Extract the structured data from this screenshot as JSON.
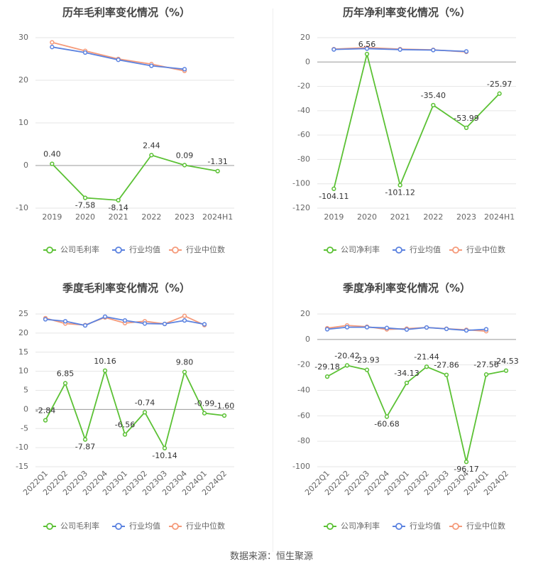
{
  "source": "数据来源：恒生聚源",
  "colors": {
    "company": "#5bc134",
    "industry_avg": "#5b82e0",
    "industry_median": "#f59a7a",
    "grid": "#e6e6e6",
    "axis": "#999999",
    "text": "#666666",
    "title": "#444444"
  },
  "chart_data": [
    {
      "id": "annual-gross",
      "type": "line",
      "title": "历年毛利率变化情况（%）",
      "categories": [
        "2019",
        "2020",
        "2021",
        "2022",
        "2023",
        "2024H1"
      ],
      "ylim": [
        -10,
        30
      ],
      "yticks": [
        -10,
        0,
        10,
        20,
        30
      ],
      "series": [
        {
          "name": "公司毛利率",
          "key": "company",
          "values": [
            0.4,
            -7.58,
            -8.14,
            2.44,
            0.09,
            -1.31
          ],
          "labels": [
            "0.40",
            "-7.58",
            "-8.14",
            "2.44",
            "0.09",
            "-1.31"
          ]
        },
        {
          "name": "行业均值",
          "key": "industry_avg",
          "values": [
            27.8,
            26.5,
            24.8,
            23.4,
            22.6,
            null
          ]
        },
        {
          "name": "行业中位数",
          "key": "industry_median",
          "values": [
            28.9,
            26.9,
            25.0,
            23.8,
            22.2,
            null
          ]
        }
      ]
    },
    {
      "id": "annual-net",
      "type": "line",
      "title": "历年净利率变化情况（%）",
      "categories": [
        "2019",
        "2020",
        "2021",
        "2022",
        "2023",
        "2024H1"
      ],
      "ylim": [
        -120,
        20
      ],
      "yticks": [
        -120,
        -100,
        -80,
        -60,
        -40,
        -20,
        0,
        20
      ],
      "series": [
        {
          "name": "公司净利率",
          "key": "company",
          "values": [
            -104.11,
            6.56,
            -101.12,
            -35.4,
            -53.99,
            -25.97
          ],
          "labels": [
            "-104.11",
            "6.56",
            "-101.12",
            "-35.40",
            "-53.99",
            "-25.97"
          ]
        },
        {
          "name": "行业均值",
          "key": "industry_avg",
          "values": [
            10.3,
            11.0,
            10.2,
            9.8,
            8.7,
            null
          ]
        },
        {
          "name": "行业中位数",
          "key": "industry_median",
          "values": [
            10.6,
            11.8,
            10.6,
            10.0,
            8.3,
            null
          ]
        }
      ]
    },
    {
      "id": "quarterly-gross",
      "type": "line",
      "title": "季度毛利率变化情况（%）",
      "categories": [
        "2022Q1",
        "2022Q2",
        "2022Q3",
        "2022Q4",
        "2023Q1",
        "2023Q2",
        "2023Q3",
        "2023Q4",
        "2024Q1",
        "2024Q2"
      ],
      "ylim": [
        -15,
        25
      ],
      "yticks": [
        -15,
        -10,
        -5,
        0,
        5,
        10,
        15,
        20,
        25
      ],
      "series": [
        {
          "name": "公司毛利率",
          "key": "company",
          "values": [
            -2.84,
            6.85,
            -7.87,
            10.16,
            -6.56,
            -0.74,
            -10.14,
            9.8,
            -0.99,
            -1.6
          ],
          "labels": [
            "-2.84",
            "6.85",
            "-7.87",
            "10.16",
            "-6.56",
            "-0.74",
            "-10.14",
            "9.80",
            "-0.99",
            "-1.60"
          ]
        },
        {
          "name": "行业均值",
          "key": "industry_avg",
          "values": [
            23.6,
            23.1,
            22.0,
            24.3,
            23.3,
            22.5,
            22.4,
            23.3,
            22.3,
            null
          ]
        },
        {
          "name": "行业中位数",
          "key": "industry_median",
          "values": [
            23.9,
            22.5,
            22.1,
            24.1,
            22.6,
            23.1,
            22.4,
            24.5,
            22.1,
            null
          ]
        }
      ]
    },
    {
      "id": "quarterly-net",
      "type": "line",
      "title": "季度净利率变化情况（%）",
      "categories": [
        "2022Q1",
        "2022Q2",
        "2022Q3",
        "2022Q4",
        "2023Q1",
        "2023Q2",
        "2023Q3",
        "2023Q4",
        "2024Q1",
        "2024Q2"
      ],
      "ylim": [
        -100,
        20
      ],
      "yticks": [
        -100,
        -80,
        -60,
        -40,
        -20,
        0,
        20
      ],
      "series": [
        {
          "name": "公司净利率",
          "key": "company",
          "values": [
            -29.18,
            -20.42,
            -23.93,
            -60.68,
            -34.13,
            -21.44,
            -27.86,
            -96.17,
            -27.56,
            -24.53
          ],
          "labels": [
            "-29.18",
            "-20.42",
            "-23.93",
            "-60.68",
            "-34.13",
            "-21.44",
            "-27.86",
            "-96.17",
            "-27.56",
            "-24.53"
          ]
        },
        {
          "name": "行业均值",
          "key": "industry_avg",
          "values": [
            8.0,
            9.6,
            9.6,
            9.0,
            7.8,
            9.4,
            8.3,
            7.1,
            8.0,
            null
          ]
        },
        {
          "name": "行业中位数",
          "key": "industry_median",
          "values": [
            8.8,
            11.0,
            10.0,
            7.9,
            8.5,
            9.4,
            8.4,
            7.6,
            6.5,
            null
          ]
        }
      ]
    }
  ]
}
